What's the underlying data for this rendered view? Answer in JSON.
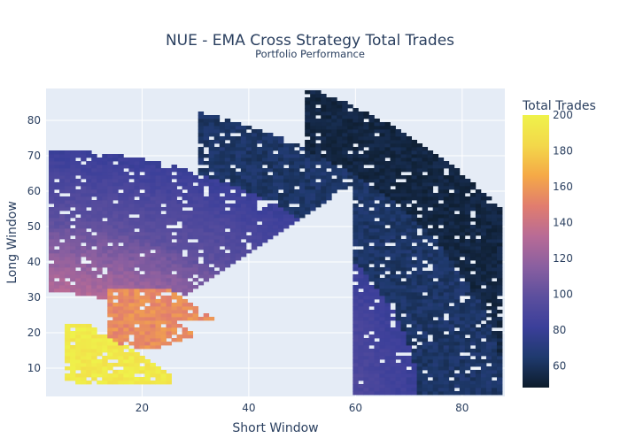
{
  "chart_data": {
    "type": "heatmap",
    "title": "NUE - EMA Cross Strategy Total Trades",
    "subtitle": "Portfolio Performance",
    "xlabel": "Short Window",
    "ylabel": "Long Window",
    "xlim": [
      2,
      88
    ],
    "ylim": [
      2,
      89
    ],
    "x_ticks": [
      20,
      40,
      60,
      80
    ],
    "y_ticks": [
      10,
      20,
      30,
      40,
      50,
      60,
      70,
      80
    ],
    "grid": true,
    "colorbar": {
      "title": "Total Trades",
      "range": [
        48,
        200
      ],
      "ticks": [
        60,
        80,
        100,
        120,
        140,
        160,
        180,
        200
      ],
      "colorscale": [
        "#0d1c2b",
        "#1f3a6e",
        "#3b3f9a",
        "#5c4f9e",
        "#8a5fa0",
        "#b86b96",
        "#e17d6e",
        "#f5a947",
        "#f3d84a",
        "#eff24a"
      ]
    },
    "regions": [
      {
        "name": "lowest-trades-band",
        "total_trades": [
          50,
          60
        ],
        "short_window": [
          62,
          88
        ],
        "long_window": [
          8,
          85
        ]
      },
      {
        "name": "low-trades-band",
        "total_trades": [
          60,
          75
        ],
        "short_window": [
          32,
          88
        ],
        "long_window": [
          20,
          89
        ]
      },
      {
        "name": "mid-trades-band",
        "total_trades": [
          75,
          95
        ],
        "short_window": [
          22,
          86
        ],
        "long_window": [
          18,
          88
        ]
      },
      {
        "name": "upper-mid-trades-band",
        "total_trades": [
          95,
          125
        ],
        "short_window": [
          13,
          80
        ],
        "long_window": [
          12,
          89
        ]
      },
      {
        "name": "high-trades-cluster",
        "total_trades": [
          145,
          165
        ],
        "short_window": [
          14,
          34
        ],
        "long_window": [
          16,
          32
        ]
      },
      {
        "name": "highest-trades-cluster",
        "total_trades": [
          185,
          200
        ],
        "short_window": [
          6,
          26
        ],
        "long_window": [
          6,
          22
        ]
      }
    ]
  },
  "colors": {
    "plot_bg": "#e5ecf6",
    "grid": "#ffffff",
    "text": "#2a3f5f"
  }
}
